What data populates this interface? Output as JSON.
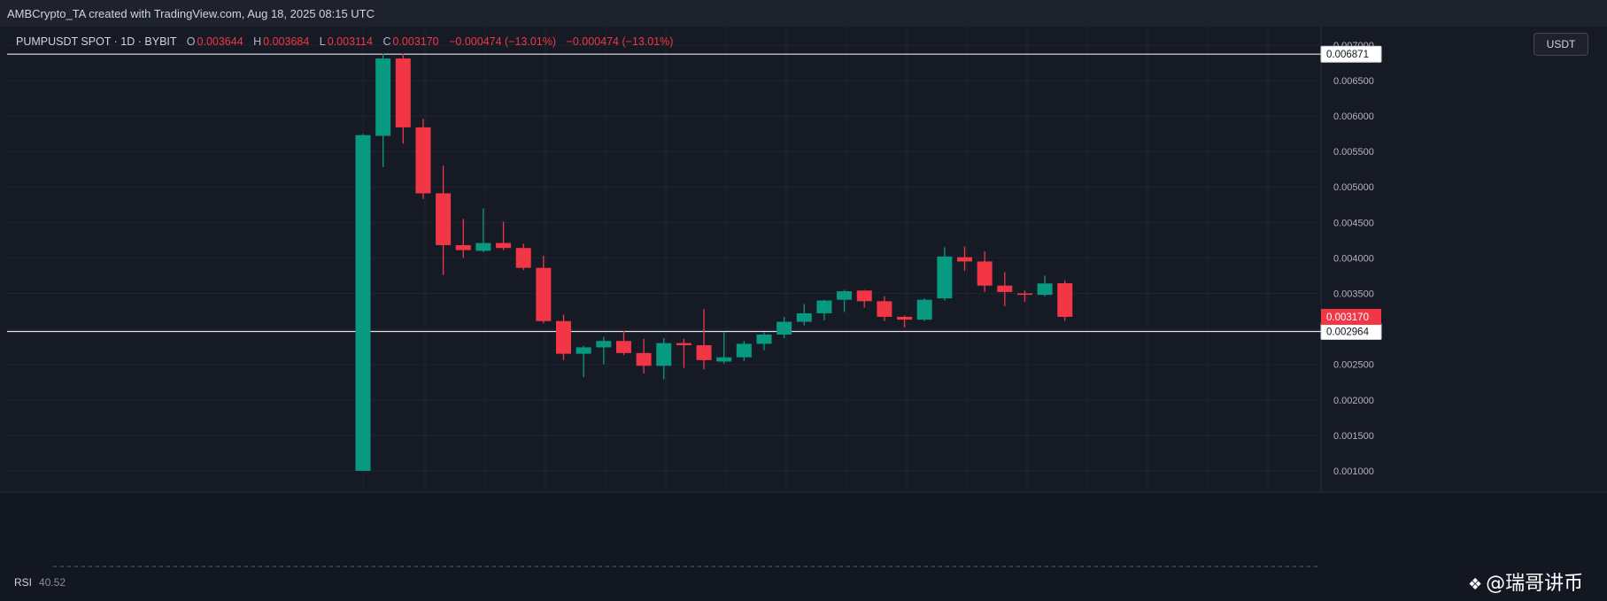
{
  "header": {
    "title": "AMBCrypto_TA created with TradingView.com, Aug 18, 2025 08:15 UTC"
  },
  "legend": {
    "symbol": "PUMPUSDT SPOT · 1D · BYBIT",
    "open_label": "O",
    "open": "0.003644",
    "high_label": "H",
    "high": "0.003684",
    "low_label": "L",
    "low": "0.003114",
    "close_label": "C",
    "close": "0.003170",
    "change": "−0.000474 (−13.01%)",
    "change2": "−0.000474 (−13.01%)"
  },
  "currency": "USDT",
  "rsi": {
    "label": "RSI",
    "value": "40.52"
  },
  "watermark": {
    "text": "@瑞哥讲币"
  },
  "colors": {
    "up": "#089981",
    "down": "#f23645",
    "background": "#131722",
    "grid": "#1f2430"
  },
  "chart_data": {
    "type": "candlestick",
    "ylim": [
      0.000775,
      0.00726
    ],
    "y_ticks": [
      "0.007000",
      "0.006500",
      "0.006000",
      "0.005500",
      "0.005000",
      "0.004500",
      "0.004000",
      "0.003500",
      "0.003000",
      "0.002500",
      "0.002000",
      "0.001500",
      "0.001000"
    ],
    "horizontal_lines": [
      {
        "value": 0.006871,
        "label": "0.006871"
      },
      {
        "value": 0.002964,
        "label": "0.002964"
      }
    ],
    "last_price": {
      "value": 0.00317,
      "label": "0.003170"
    },
    "candles": [
      {
        "o": 0.001,
        "h": 0.00575,
        "l": 0.001,
        "c": 0.00573
      },
      {
        "o": 0.00572,
        "h": 0.00688,
        "l": 0.00528,
        "c": 0.00681
      },
      {
        "o": 0.00681,
        "h": 0.00688,
        "l": 0.00561,
        "c": 0.00584
      },
      {
        "o": 0.00584,
        "h": 0.00596,
        "l": 0.00483,
        "c": 0.00491
      },
      {
        "o": 0.00491,
        "h": 0.0053,
        "l": 0.00376,
        "c": 0.00418
      },
      {
        "o": 0.00418,
        "h": 0.00455,
        "l": 0.004,
        "c": 0.00411
      },
      {
        "o": 0.0041,
        "h": 0.0047,
        "l": 0.00408,
        "c": 0.00421
      },
      {
        "o": 0.00421,
        "h": 0.00451,
        "l": 0.00411,
        "c": 0.00414
      },
      {
        "o": 0.00414,
        "h": 0.0042,
        "l": 0.00383,
        "c": 0.00386
      },
      {
        "o": 0.00386,
        "h": 0.00403,
        "l": 0.00308,
        "c": 0.00311
      },
      {
        "o": 0.00311,
        "h": 0.0032,
        "l": 0.00256,
        "c": 0.00265
      },
      {
        "o": 0.00265,
        "h": 0.00276,
        "l": 0.00232,
        "c": 0.00274
      },
      {
        "o": 0.00274,
        "h": 0.00289,
        "l": 0.0025,
        "c": 0.00283
      },
      {
        "o": 0.00283,
        "h": 0.00297,
        "l": 0.00263,
        "c": 0.00266
      },
      {
        "o": 0.00266,
        "h": 0.00286,
        "l": 0.00237,
        "c": 0.00248
      },
      {
        "o": 0.00248,
        "h": 0.00287,
        "l": 0.00229,
        "c": 0.0028
      },
      {
        "o": 0.0028,
        "h": 0.00286,
        "l": 0.00245,
        "c": 0.00277
      },
      {
        "o": 0.00277,
        "h": 0.00328,
        "l": 0.00243,
        "c": 0.00256
      },
      {
        "o": 0.00254,
        "h": 0.00296,
        "l": 0.00251,
        "c": 0.0026
      },
      {
        "o": 0.0026,
        "h": 0.00283,
        "l": 0.00255,
        "c": 0.00279
      },
      {
        "o": 0.00279,
        "h": 0.00295,
        "l": 0.0027,
        "c": 0.00292
      },
      {
        "o": 0.00292,
        "h": 0.00317,
        "l": 0.00287,
        "c": 0.0031
      },
      {
        "o": 0.0031,
        "h": 0.00335,
        "l": 0.00305,
        "c": 0.00322
      },
      {
        "o": 0.00322,
        "h": 0.00341,
        "l": 0.00312,
        "c": 0.0034
      },
      {
        "o": 0.00341,
        "h": 0.00355,
        "l": 0.00324,
        "c": 0.00353
      },
      {
        "o": 0.00354,
        "h": 0.00355,
        "l": 0.0033,
        "c": 0.00339
      },
      {
        "o": 0.00339,
        "h": 0.00346,
        "l": 0.00311,
        "c": 0.00317
      },
      {
        "o": 0.00317,
        "h": 0.00319,
        "l": 0.00302,
        "c": 0.00313
      },
      {
        "o": 0.00313,
        "h": 0.00343,
        "l": 0.00311,
        "c": 0.00341
      },
      {
        "o": 0.00343,
        "h": 0.00415,
        "l": 0.0034,
        "c": 0.00402
      },
      {
        "o": 0.00401,
        "h": 0.00416,
        "l": 0.00382,
        "c": 0.00395
      },
      {
        "o": 0.00395,
        "h": 0.00409,
        "l": 0.00352,
        "c": 0.00361
      },
      {
        "o": 0.00361,
        "h": 0.0038,
        "l": 0.00332,
        "c": 0.00352
      },
      {
        "o": 0.0035,
        "h": 0.00354,
        "l": 0.00338,
        "c": 0.00348
      },
      {
        "o": 0.00348,
        "h": 0.00375,
        "l": 0.00346,
        "c": 0.00364
      },
      {
        "o": 0.003644,
        "h": 0.003684,
        "l": 0.003114,
        "c": 0.00317
      }
    ]
  }
}
